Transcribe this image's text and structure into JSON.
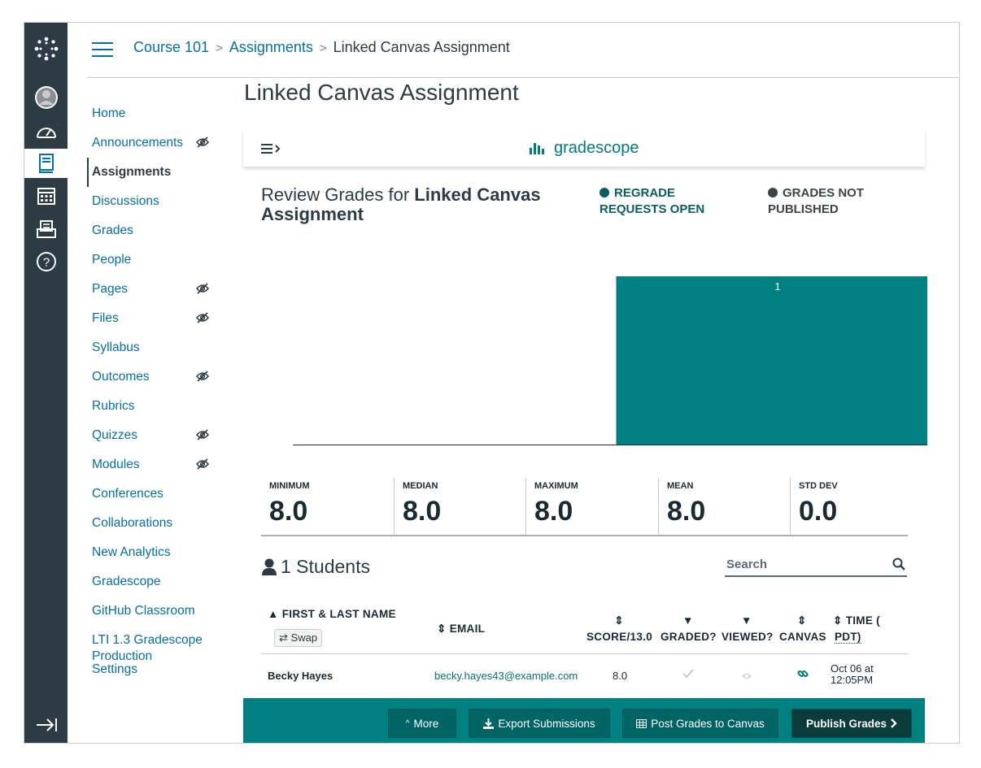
{
  "header": {
    "breadcrumbs": [
      "Course 101",
      "Assignments",
      "Linked Canvas Assignment"
    ]
  },
  "course_nav": {
    "items": [
      {
        "label": "Home",
        "hidden": false,
        "active": false
      },
      {
        "label": "Announcements",
        "hidden": true,
        "active": false
      },
      {
        "label": "Assignments",
        "hidden": false,
        "active": true
      },
      {
        "label": "Discussions",
        "hidden": false,
        "active": false
      },
      {
        "label": "Grades",
        "hidden": false,
        "active": false
      },
      {
        "label": "People",
        "hidden": false,
        "active": false
      },
      {
        "label": "Pages",
        "hidden": true,
        "active": false
      },
      {
        "label": "Files",
        "hidden": true,
        "active": false
      },
      {
        "label": "Syllabus",
        "hidden": false,
        "active": false
      },
      {
        "label": "Outcomes",
        "hidden": true,
        "active": false
      },
      {
        "label": "Rubrics",
        "hidden": false,
        "active": false
      },
      {
        "label": "Quizzes",
        "hidden": true,
        "active": false
      },
      {
        "label": "Modules",
        "hidden": true,
        "active": false
      },
      {
        "label": "Conferences",
        "hidden": false,
        "active": false
      },
      {
        "label": "Collaborations",
        "hidden": false,
        "active": false
      },
      {
        "label": "New Analytics",
        "hidden": false,
        "active": false
      },
      {
        "label": "Gradescope",
        "hidden": false,
        "active": false
      },
      {
        "label": "GitHub Classroom",
        "hidden": false,
        "active": false
      },
      {
        "label": "LTI 1.3 Gradescope Production",
        "hidden": false,
        "active": false
      },
      {
        "label": "Settings",
        "hidden": false,
        "active": false
      }
    ]
  },
  "page": {
    "title": "Linked Canvas Assignment"
  },
  "gradescope": {
    "brand": "gradescope",
    "review_prefix": "Review Grades for ",
    "review_assignment": "Linked Canvas Assignment",
    "status_regrade": "REGRADE REQUESTS OPEN",
    "status_grades": "GRADES NOT PUBLISHED",
    "colors": {
      "teal": "#008080",
      "dark_teal": "#0b5e5e",
      "gray_dot": "#3d4447"
    }
  },
  "chart_data": {
    "type": "bar",
    "title": "",
    "xlabel": "",
    "ylabel": "",
    "xlim": [
      0,
      13
    ],
    "x_ticks": [
      0,
      1,
      2,
      3,
      4,
      5,
      6,
      7,
      8,
      9,
      10,
      11,
      12,
      13
    ],
    "bins": [
      {
        "x_start": 6.5,
        "x_end": 13,
        "count": 1,
        "label": "1"
      }
    ],
    "ylim": [
      0,
      1
    ],
    "grid": false
  },
  "stats": [
    {
      "label": "MINIMUM",
      "value": "8.0"
    },
    {
      "label": "MEDIAN",
      "value": "8.0"
    },
    {
      "label": "MAXIMUM",
      "value": "8.0"
    },
    {
      "label": "MEAN",
      "value": "8.0"
    },
    {
      "label": "STD DEV",
      "value": "0.0"
    }
  ],
  "students": {
    "count_label": "1 Students",
    "search_placeholder": "Search",
    "swap_label": "Swap",
    "columns": {
      "name": "FIRST & LAST NAME",
      "email": "EMAIL",
      "score": "SCORE/13.0",
      "graded": "GRADED?",
      "viewed": "VIEWED?",
      "canvas": "CANVAS",
      "time_1": "TIME (",
      "time_2": "PDT)"
    },
    "rows": [
      {
        "name": "Becky Hayes",
        "email": "becky.hayes43@example.com",
        "score": "8.0",
        "time_1": "Oct 06 at",
        "time_2": "12:05PM"
      }
    ]
  },
  "footer": {
    "more": "More",
    "export": "Export Submissions",
    "post": "Post Grades to Canvas",
    "publish": "Publish Grades"
  }
}
